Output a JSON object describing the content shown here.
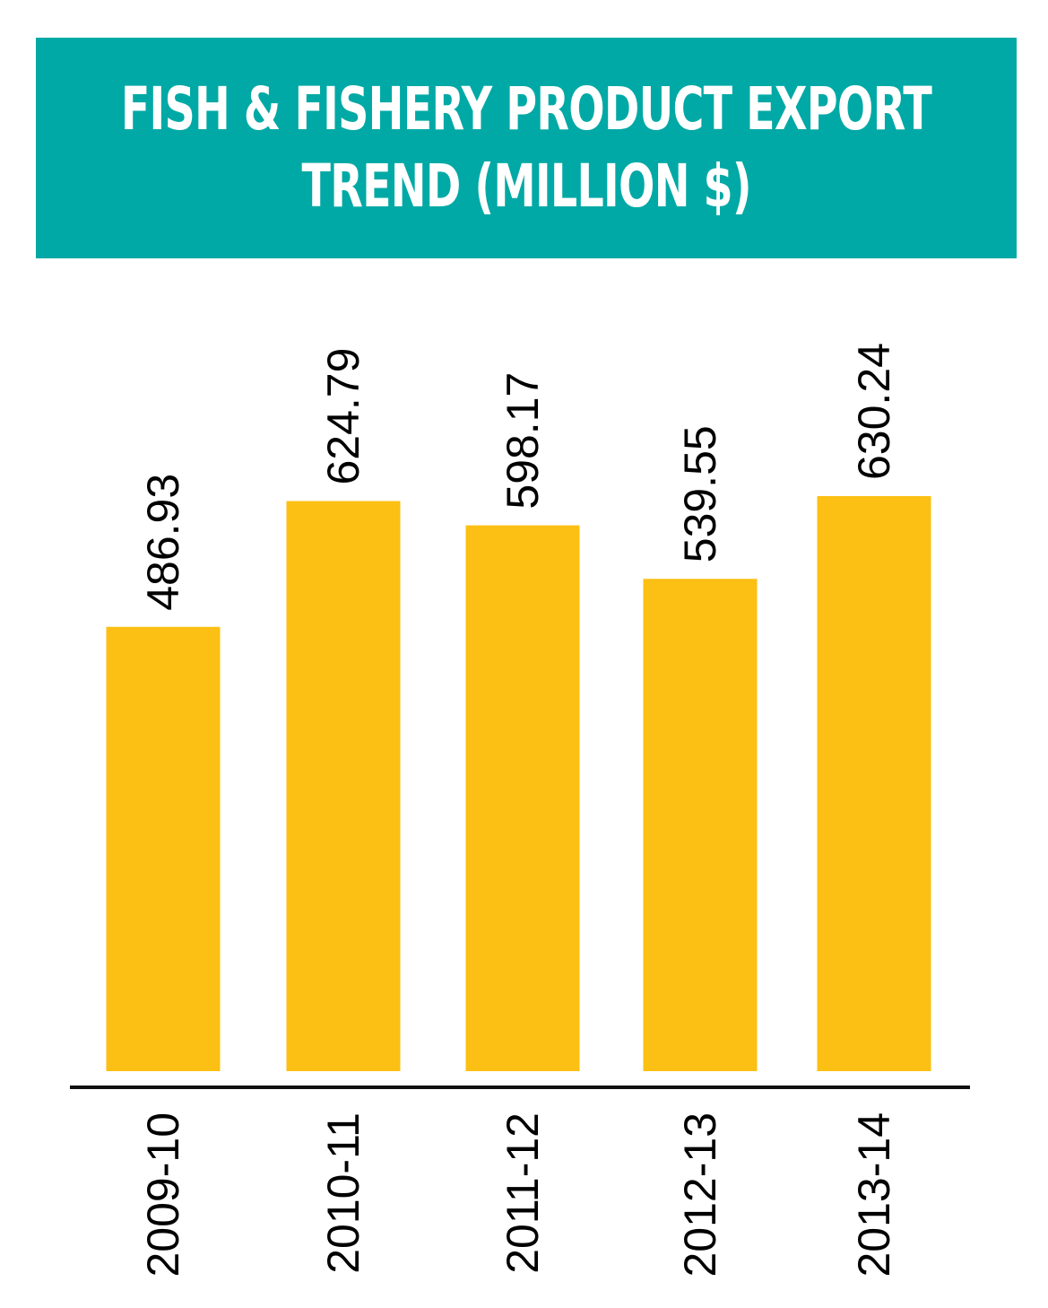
{
  "title": {
    "line1": "FISH & FISHERY PRODUCT EXPORT",
    "line2": "TREND (MILLION $)"
  },
  "colors": {
    "banner": "#00a9a5",
    "bar": "#fcbf13",
    "axis": "#111111",
    "text": "#000000"
  },
  "chart_data": {
    "type": "bar",
    "title": "FISH & FISHERY PRODUCT EXPORT TREND (MILLION $)",
    "categories": [
      "2009-10",
      "2010-11",
      "2011-12",
      "2012-13",
      "2013-14"
    ],
    "values": [
      486.93,
      624.79,
      598.17,
      539.55,
      630.24
    ],
    "data_labels": [
      "486.93",
      "624.79",
      "598.17",
      "539.55",
      "630.24"
    ],
    "xlabel": "",
    "ylabel": "",
    "ylim": [
      0,
      630.24
    ],
    "grid": false,
    "legend": "none"
  }
}
